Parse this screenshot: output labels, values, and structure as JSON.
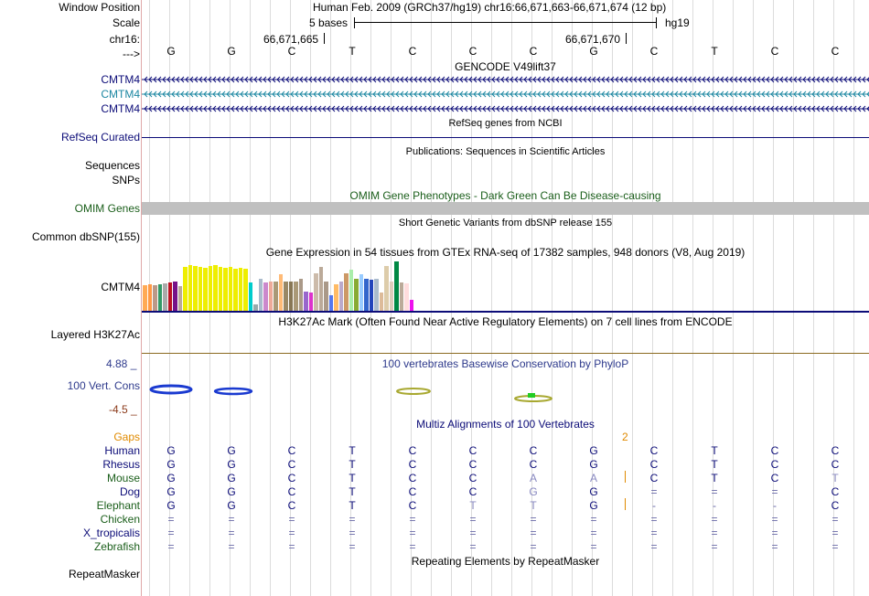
{
  "header": {
    "window_position_label": "Window Position",
    "scale_label": "Scale",
    "chrom_label": "chr16:",
    "strand_label": "--->",
    "position_title": "Human Feb. 2009 (GRCh37/hg19)   chr16:66,671,663-66,671,674 (12 bp)",
    "scale_text": "5 bases",
    "assembly": "hg19",
    "coord_1": "66,671,665",
    "coord_2": "66,671,670"
  },
  "sequence": [
    "G",
    "G",
    "C",
    "T",
    "C",
    "C",
    "C",
    "G",
    "C",
    "T",
    "C",
    "C"
  ],
  "gencode": {
    "title": "GENCODE V49lift37",
    "genes": [
      {
        "name": "CMTM4",
        "color": "#0c0c78"
      },
      {
        "name": "CMTM4",
        "color": "#1c87a2"
      },
      {
        "name": "CMTM4",
        "color": "#0c0c78"
      }
    ]
  },
  "refseq": {
    "title": "RefSeq genes from NCBI",
    "label": "RefSeq Curated"
  },
  "publications": {
    "title": "Publications: Sequences in Scientific Articles",
    "label_1": "Sequences",
    "label_2": "SNPs"
  },
  "omim": {
    "title": "OMIM Gene Phenotypes - Dark Green Can Be Disease-causing",
    "label": "OMIM Genes"
  },
  "dbsnp": {
    "title": "Short Genetic Variants from dbSNP release 155",
    "label": "Common dbSNP(155)"
  },
  "gtex": {
    "title": "Gene Expression in 54 tissues from GTEx RNA-seq of 17382 samples, 948 donors (V8, Aug 2019)",
    "label": "CMTM4",
    "bars": [
      {
        "v": 0.5,
        "c": "#ffaa55"
      },
      {
        "v": 0.52,
        "c": "#ff9944"
      },
      {
        "v": 0.5,
        "c": "#bb9988"
      },
      {
        "v": 0.52,
        "c": "#339966"
      },
      {
        "v": 0.54,
        "c": "#aaaaaa"
      },
      {
        "v": 0.56,
        "c": "#bb1122"
      },
      {
        "v": 0.58,
        "c": "#771188"
      },
      {
        "v": 0.48,
        "c": "#bbaa99"
      },
      {
        "v": 0.86,
        "c": "#eeee00"
      },
      {
        "v": 0.9,
        "c": "#eeee00"
      },
      {
        "v": 0.88,
        "c": "#eeee00"
      },
      {
        "v": 0.86,
        "c": "#eeee00"
      },
      {
        "v": 0.84,
        "c": "#eeee00"
      },
      {
        "v": 0.88,
        "c": "#eeee00"
      },
      {
        "v": 0.9,
        "c": "#eeee00"
      },
      {
        "v": 0.86,
        "c": "#eeee00"
      },
      {
        "v": 0.84,
        "c": "#eeee00"
      },
      {
        "v": 0.86,
        "c": "#eeee00"
      },
      {
        "v": 0.82,
        "c": "#eeee00"
      },
      {
        "v": 0.84,
        "c": "#eeee00"
      },
      {
        "v": 0.82,
        "c": "#eeee00"
      },
      {
        "v": 0.56,
        "c": "#00cccc"
      },
      {
        "v": 0.12,
        "c": "#99aaaa"
      },
      {
        "v": 0.62,
        "c": "#aabbcc"
      },
      {
        "v": 0.56,
        "c": "#cc88cc"
      },
      {
        "v": 0.58,
        "c": "#eeaa99"
      },
      {
        "v": 0.58,
        "c": "#aa9977"
      },
      {
        "v": 0.72,
        "c": "#ffbb77"
      },
      {
        "v": 0.58,
        "c": "#998866"
      },
      {
        "v": 0.58,
        "c": "#887755"
      },
      {
        "v": 0.58,
        "c": "#aa9977"
      },
      {
        "v": 0.62,
        "c": "#aa9988"
      },
      {
        "v": 0.38,
        "c": "#9966cc"
      },
      {
        "v": 0.36,
        "c": "#dd33cc"
      },
      {
        "v": 0.74,
        "c": "#ccbbaa"
      },
      {
        "v": 0.86,
        "c": "#bbaa99"
      },
      {
        "v": 0.58,
        "c": "#aa9988"
      },
      {
        "v": 0.3,
        "c": "#5577ee"
      },
      {
        "v": 0.52,
        "c": "#ffbb66"
      },
      {
        "v": 0.58,
        "c": "#bbaacc"
      },
      {
        "v": 0.74,
        "c": "#cc9966"
      },
      {
        "v": 0.8,
        "c": "#aaeeaa"
      },
      {
        "v": 0.62,
        "c": "#88aa33"
      },
      {
        "v": 0.72,
        "c": "#99ccff"
      },
      {
        "v": 0.62,
        "c": "#3366cc"
      },
      {
        "v": 0.6,
        "c": "#2244bb"
      },
      {
        "v": 0.62,
        "c": "#aabbcc"
      },
      {
        "v": 0.36,
        "c": "#ddbb99"
      },
      {
        "v": 0.88,
        "c": "#ddccaa"
      },
      {
        "v": 0.58,
        "c": "#ddccbb"
      },
      {
        "v": 0.96,
        "c": "#008844"
      },
      {
        "v": 0.56,
        "c": "#bbaa99"
      },
      {
        "v": 0.54,
        "c": "#ffdddd"
      },
      {
        "v": 0.22,
        "c": "#ee11ee"
      }
    ]
  },
  "h3k27ac": {
    "title": "H3K27Ac Mark (Often Found Near Active Regulatory Elements) on 7 cell lines from ENCODE",
    "label": "Layered H3K27Ac"
  },
  "phylop": {
    "title": "100 vertebrates Basewise Conservation by PhyloP",
    "label": "100 Vert. Cons",
    "max": "4.88 _",
    "min": "-4.5 _"
  },
  "multiz": {
    "title": "Multiz Alignments of 100 Vertebrates",
    "gaps_label": "Gaps",
    "gap_count": "2",
    "species": [
      {
        "name": "Human",
        "color": "#0c0c78",
        "bases": [
          "G",
          "G",
          "C",
          "T",
          "C",
          "C",
          "C",
          "G",
          "C",
          "T",
          "C",
          "C"
        ]
      },
      {
        "name": "Rhesus",
        "color": "#0c0c78",
        "bases": [
          "G",
          "G",
          "C",
          "T",
          "C",
          "C",
          "C",
          "G",
          "C",
          "T",
          "C",
          "C"
        ]
      },
      {
        "name": "Mouse",
        "color": "#1a5e1a",
        "bases": [
          "G",
          "G",
          "C",
          "T",
          "C",
          "C",
          "A",
          "A",
          "C",
          "T",
          "C",
          "T"
        ]
      },
      {
        "name": "Dog",
        "color": "#0c0c78",
        "bases": [
          "G",
          "G",
          "C",
          "T",
          "C",
          "C",
          "G",
          "G",
          "=",
          "=",
          "=",
          "C"
        ]
      },
      {
        "name": "Elephant",
        "color": "#1a5e1a",
        "bases": [
          "G",
          "G",
          "C",
          "T",
          "C",
          "T",
          "T",
          "G",
          "-",
          "-",
          "-",
          "C"
        ]
      },
      {
        "name": "Chicken",
        "color": "#1a5e1a",
        "bases": [
          "=",
          "=",
          "=",
          "=",
          "=",
          "=",
          "=",
          "=",
          "=",
          "=",
          "=",
          "="
        ]
      },
      {
        "name": "X_tropicalis",
        "color": "#0c0c78",
        "bases": [
          "=",
          "=",
          "=",
          "=",
          "=",
          "=",
          "=",
          "=",
          "=",
          "=",
          "=",
          "="
        ]
      },
      {
        "name": "Zebrafish",
        "color": "#1a5e1a",
        "bases": [
          "=",
          "=",
          "=",
          "=",
          "=",
          "=",
          "=",
          "=",
          "=",
          "=",
          "=",
          "="
        ]
      }
    ]
  },
  "repeatmasker": {
    "title": "Repeating Elements by RepeatMasker",
    "label": "RepeatMasker"
  }
}
